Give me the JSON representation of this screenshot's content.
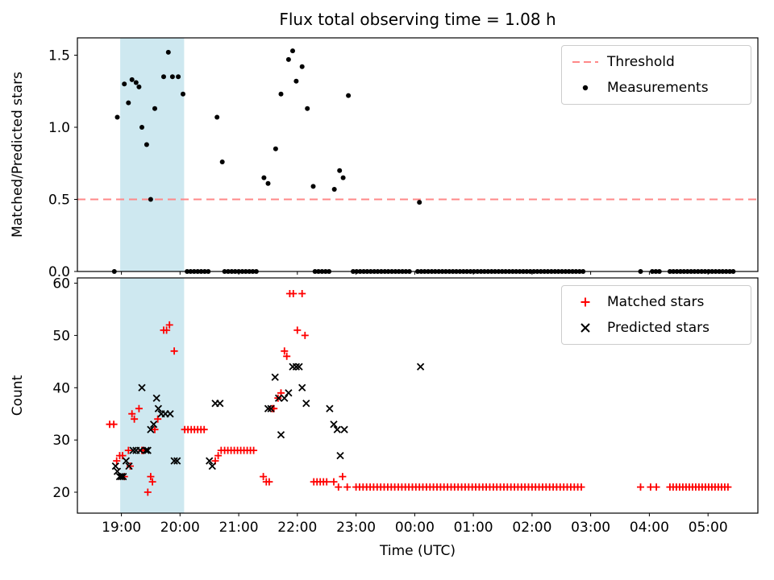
{
  "figure": {
    "background": "#ffffff",
    "shading_color": "#add8e6"
  },
  "chart_data": [
    {
      "id": "flux-ratio-plot",
      "type": "scatter",
      "title": "Flux total observing time = 1.08 h",
      "xlabel": "",
      "ylabel": "Matched/Predicted stars",
      "xlim": [
        18.25,
        29.85
      ],
      "ylim": [
        0,
        1.62
      ],
      "xticks": [
        19,
        20,
        21,
        22,
        23,
        24,
        25,
        26,
        27,
        28,
        29
      ],
      "xtick_labels": [
        "19:00",
        "20:00",
        "21:00",
        "22:00",
        "23:00",
        "00:00",
        "01:00",
        "02:00",
        "03:00",
        "04:00",
        "05:00"
      ],
      "show_xtick_labels": false,
      "yticks": [
        0.0,
        0.5,
        1.0,
        1.5
      ],
      "ytick_labels": [
        "0.0",
        "0.5",
        "1.0",
        "1.5"
      ],
      "grid": false,
      "legend_position": "upper right",
      "shaded_span": {
        "t0": 18.98,
        "t1": 20.07,
        "color": "#add8e6",
        "opacity": 0.6
      },
      "threshold": {
        "value": 0.5,
        "color": "#ff8888",
        "style": "dashed"
      },
      "legend_items": [
        {
          "label": "Threshold",
          "marker": "dashed-line",
          "color": "#ff8888"
        },
        {
          "label": "Measurements",
          "marker": "dot",
          "color": "#000000"
        }
      ],
      "series": [
        {
          "id": "measurements",
          "name": "Measurements",
          "marker": "dot",
          "color": "#000000",
          "points": [
            [
              18.93,
              1.07
            ],
            [
              19.05,
              1.3
            ],
            [
              19.12,
              1.17
            ],
            [
              19.18,
              1.33
            ],
            [
              19.25,
              1.31
            ],
            [
              19.3,
              1.28
            ],
            [
              19.35,
              1.0
            ],
            [
              19.43,
              0.88
            ],
            [
              19.5,
              0.5
            ],
            [
              19.57,
              1.13
            ],
            [
              19.72,
              1.35
            ],
            [
              19.8,
              1.52
            ],
            [
              19.87,
              1.35
            ],
            [
              19.97,
              1.35
            ],
            [
              20.05,
              1.23
            ],
            [
              20.63,
              1.07
            ],
            [
              20.72,
              0.76
            ],
            [
              21.43,
              0.65
            ],
            [
              21.5,
              0.61
            ],
            [
              21.63,
              0.85
            ],
            [
              21.72,
              1.23
            ],
            [
              21.85,
              1.47
            ],
            [
              21.92,
              1.53
            ],
            [
              21.98,
              1.32
            ],
            [
              22.08,
              1.42
            ],
            [
              22.17,
              1.13
            ],
            [
              22.27,
              0.59
            ],
            [
              22.63,
              0.57
            ],
            [
              22.72,
              0.7
            ],
            [
              22.78,
              0.65
            ],
            [
              22.87,
              1.22
            ],
            [
              24.08,
              0.48
            ]
          ],
          "runs": [
            {
              "t0": 18.88,
              "t1": 18.88,
              "step": 0.06,
              "v": 0
            },
            {
              "t0": 20.12,
              "t1": 20.5,
              "step": 0.06,
              "v": 0
            },
            {
              "t0": 20.76,
              "t1": 21.3,
              "step": 0.06,
              "v": 0
            },
            {
              "t0": 22.3,
              "t1": 22.58,
              "step": 0.06,
              "v": 0
            },
            {
              "t0": 22.95,
              "t1": 23.95,
              "step": 0.06,
              "v": 0
            },
            {
              "t0": 24.05,
              "t1": 26.9,
              "step": 0.06,
              "v": 0
            },
            {
              "t0": 27.85,
              "t1": 27.85,
              "step": 0.06,
              "v": 0
            },
            {
              "t0": 28.05,
              "t1": 28.18,
              "step": 0.06,
              "v": 0
            },
            {
              "t0": 28.35,
              "t1": 29.45,
              "step": 0.06,
              "v": 0
            }
          ]
        }
      ]
    },
    {
      "id": "count-plot",
      "type": "scatter",
      "title": "",
      "xlabel": "Time (UTC)",
      "ylabel": "Count",
      "xlim": [
        18.25,
        29.85
      ],
      "ylim": [
        16,
        61
      ],
      "xticks": [
        19,
        20,
        21,
        22,
        23,
        24,
        25,
        26,
        27,
        28,
        29
      ],
      "xtick_labels": [
        "19:00",
        "20:00",
        "21:00",
        "22:00",
        "23:00",
        "00:00",
        "01:00",
        "02:00",
        "03:00",
        "04:00",
        "05:00"
      ],
      "show_xtick_labels": true,
      "yticks": [
        20,
        30,
        40,
        50,
        60
      ],
      "ytick_labels": [
        "20",
        "30",
        "40",
        "50",
        "60"
      ],
      "grid": false,
      "legend_position": "upper right",
      "shaded_span": {
        "t0": 18.98,
        "t1": 20.07,
        "color": "#add8e6",
        "opacity": 0.6
      },
      "legend_items": [
        {
          "label": "Matched stars",
          "marker": "plus",
          "color": "#ff0000"
        },
        {
          "label": "Predicted stars",
          "marker": "x",
          "color": "#000000"
        }
      ],
      "series": [
        {
          "id": "matched-stars",
          "name": "Matched stars",
          "marker": "plus",
          "color": "#ff0000",
          "points": [
            [
              18.8,
              33
            ],
            [
              18.87,
              33
            ],
            [
              18.92,
              26
            ],
            [
              18.97,
              27
            ],
            [
              19.02,
              27
            ],
            [
              19.05,
              23
            ],
            [
              19.12,
              28
            ],
            [
              19.15,
              25
            ],
            [
              19.18,
              35
            ],
            [
              19.22,
              34
            ],
            [
              19.3,
              36
            ],
            [
              19.35,
              28
            ],
            [
              19.38,
              28
            ],
            [
              19.45,
              20
            ],
            [
              19.5,
              23
            ],
            [
              19.53,
              22
            ],
            [
              19.57,
              32
            ],
            [
              19.62,
              34
            ],
            [
              19.72,
              51
            ],
            [
              19.77,
              51
            ],
            [
              19.82,
              52
            ],
            [
              19.9,
              47
            ],
            [
              20.6,
              26
            ],
            [
              20.65,
              27
            ],
            [
              20.7,
              28
            ],
            [
              21.42,
              23
            ],
            [
              21.47,
              22
            ],
            [
              21.52,
              22
            ],
            [
              21.57,
              36
            ],
            [
              21.6,
              36
            ],
            [
              21.67,
              38
            ],
            [
              21.72,
              39
            ],
            [
              21.78,
              47
            ],
            [
              21.82,
              46
            ],
            [
              21.87,
              58
            ],
            [
              21.93,
              58
            ],
            [
              22.0,
              51
            ],
            [
              22.08,
              58
            ],
            [
              22.13,
              50
            ],
            [
              22.62,
              22
            ],
            [
              22.7,
              21
            ],
            [
              22.77,
              23
            ],
            [
              22.85,
              21
            ],
            [
              27.85,
              21
            ],
            [
              28.02,
              21
            ],
            [
              28.12,
              21
            ]
          ],
          "runs": [
            {
              "t0": 20.08,
              "t1": 20.46,
              "step": 0.055,
              "v": 32
            },
            {
              "t0": 20.76,
              "t1": 21.3,
              "step": 0.055,
              "v": 28
            },
            {
              "t0": 22.28,
              "t1": 22.55,
              "step": 0.055,
              "v": 22
            },
            {
              "t0": 23.0,
              "t1": 26.85,
              "step": 0.06,
              "v": 21
            },
            {
              "t0": 28.35,
              "t1": 29.35,
              "step": 0.055,
              "v": 21
            }
          ]
        },
        {
          "id": "predicted-stars",
          "name": "Predicted stars",
          "marker": "x",
          "color": "#000000",
          "points": [
            [
              18.9,
              25
            ],
            [
              18.93,
              24
            ],
            [
              18.97,
              23
            ],
            [
              19.0,
              23
            ],
            [
              19.03,
              23
            ],
            [
              19.08,
              26
            ],
            [
              19.13,
              25
            ],
            [
              19.2,
              28
            ],
            [
              19.25,
              28
            ],
            [
              19.32,
              28
            ],
            [
              19.35,
              40
            ],
            [
              19.42,
              28
            ],
            [
              19.45,
              28
            ],
            [
              19.5,
              32
            ],
            [
              19.55,
              33
            ],
            [
              19.6,
              38
            ],
            [
              19.63,
              36
            ],
            [
              19.68,
              35
            ],
            [
              19.75,
              35
            ],
            [
              19.83,
              35
            ],
            [
              19.9,
              26
            ],
            [
              19.95,
              26
            ],
            [
              20.5,
              26
            ],
            [
              20.55,
              25
            ],
            [
              20.6,
              37
            ],
            [
              20.68,
              37
            ],
            [
              21.5,
              36
            ],
            [
              21.55,
              36
            ],
            [
              21.62,
              42
            ],
            [
              21.68,
              38
            ],
            [
              21.72,
              31
            ],
            [
              21.78,
              38
            ],
            [
              21.85,
              39
            ],
            [
              21.92,
              44
            ],
            [
              21.98,
              44
            ],
            [
              22.03,
              44
            ],
            [
              22.08,
              40
            ],
            [
              22.15,
              37
            ],
            [
              22.55,
              36
            ],
            [
              22.62,
              33
            ],
            [
              22.68,
              32
            ],
            [
              22.73,
              27
            ],
            [
              22.8,
              32
            ],
            [
              24.1,
              44
            ]
          ],
          "runs": []
        }
      ]
    }
  ]
}
